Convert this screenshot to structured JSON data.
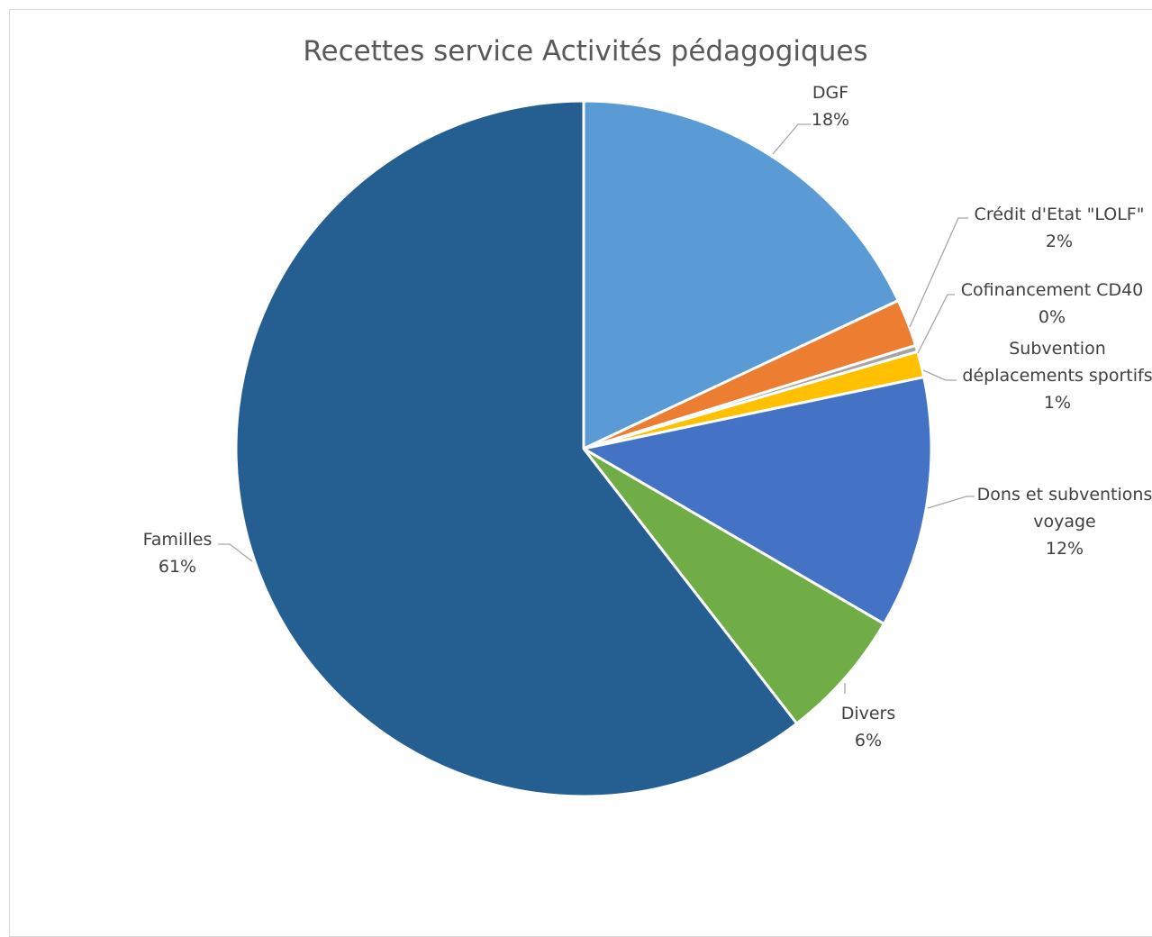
{
  "chart_data": {
    "type": "pie",
    "title": "Recettes service Activités pédagogiques",
    "slices": [
      {
        "label": "DGF",
        "value": 18,
        "value_label": "18%",
        "color": "#5b9bd5"
      },
      {
        "label": "Crédit d'Etat \"LOLF\"",
        "value": 2.2,
        "value_label": "2%",
        "color": "#ed7d31"
      },
      {
        "label": "Cofinancement CD40",
        "value": 0.3,
        "value_label": "0%",
        "color": "#a5a5a5"
      },
      {
        "label": "Subvention déplacements sportifs",
        "value": 1.2,
        "value_label": "1%",
        "color": "#ffc000"
      },
      {
        "label": "Dons et subventions voyage",
        "value": 11.7,
        "value_label": "12%",
        "color": "#4472c4"
      },
      {
        "label": "Divers",
        "value": 6.1,
        "value_label": "6%",
        "color": "#70ad47"
      },
      {
        "label": "Familles",
        "value": 60.5,
        "value_label": "61%",
        "color": "#255e91"
      }
    ],
    "legend": "none",
    "label_lines": {
      "DGF": [
        "DGF"
      ],
      "Crédit d'Etat \"LOLF\"": [
        "Crédit d'Etat \"LOLF\""
      ],
      "Cofinancement CD40": [
        "Cofinancement CD40"
      ],
      "Subvention déplacements sportifs": [
        "Subvention",
        "déplacements sportifs"
      ],
      "Dons et subventions voyage": [
        "Dons et subventions",
        "voyage"
      ],
      "Divers": [
        "Divers"
      ],
      "Familles": [
        "Familles"
      ]
    }
  }
}
